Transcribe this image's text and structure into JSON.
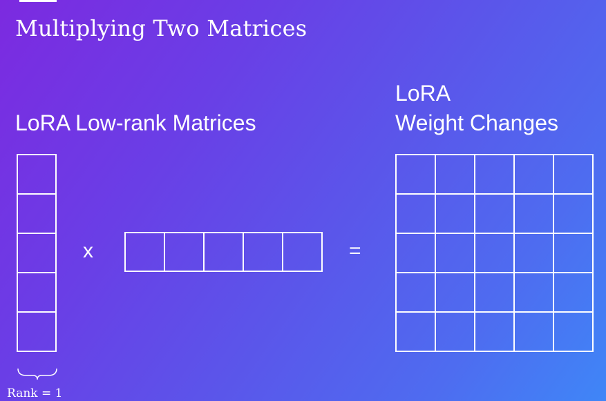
{
  "slide": {
    "title": "Multiplying Two Matrices",
    "left_label": "LoRA Low-rank Matrices",
    "right_label_line1": "LoRA",
    "right_label_line2": "Weight Changes",
    "times_symbol": "x",
    "equals_symbol": "=",
    "rank_label": "Rank = 1"
  },
  "matrices": {
    "column_vector": {
      "rows": 5,
      "cols": 1
    },
    "row_vector": {
      "rows": 1,
      "cols": 5
    },
    "result": {
      "rows": 5,
      "cols": 5
    }
  },
  "colors": {
    "line": "#ffffff",
    "gradient_start": "#7c2ae0",
    "gradient_end": "#3f86f7"
  }
}
